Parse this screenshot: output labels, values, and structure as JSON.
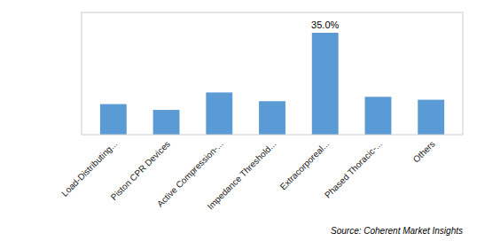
{
  "chart_data": {
    "type": "bar",
    "categories": [
      "Load-Distributing...",
      "Piston CPR Devices",
      "Active Compression-...",
      "Impedance Threshold...",
      "Extracorporeal...",
      "Phased Thoracic-...",
      "Others"
    ],
    "values": [
      10.5,
      8.5,
      14.5,
      11.5,
      35.0,
      13.0,
      12.0
    ],
    "color": "#5b9bd5",
    "ylim": [
      0,
      42
    ],
    "grid": false,
    "tick_labels": "x",
    "annotations": [
      {
        "text": "35.0%",
        "x": "Extracorporeal...",
        "y": 35.0
      }
    ],
    "source": "Source: Coherent Market Insights"
  }
}
